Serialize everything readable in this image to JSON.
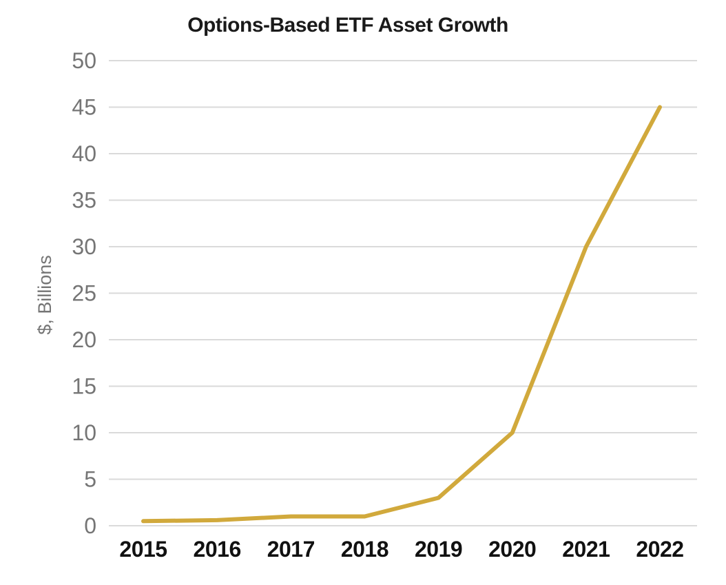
{
  "page": {
    "background_color": "#ffffff"
  },
  "chart_data": {
    "type": "line",
    "title": "Options-Based ETF Asset Growth",
    "xlabel": "",
    "ylabel": "$, Billions",
    "categories": [
      "2015",
      "2016",
      "2017",
      "2018",
      "2019",
      "2020",
      "2021",
      "2022"
    ],
    "values": [
      0.5,
      0.6,
      1,
      1,
      3,
      10,
      30,
      45
    ],
    "ylim": [
      0,
      50
    ],
    "y_ticks": [
      0,
      5,
      10,
      15,
      20,
      25,
      30,
      35,
      40,
      45,
      50
    ],
    "grid": "horizontal-only",
    "legend": "none",
    "markers": "none",
    "colors": {
      "line": "#D1A93C",
      "grid": "#DADADA",
      "title": "#1A1A1A",
      "y_tick_labels": "#757575",
      "x_tick_labels": "#111111",
      "y_axis_label": "#757575",
      "background": "#FFFFFF"
    }
  }
}
